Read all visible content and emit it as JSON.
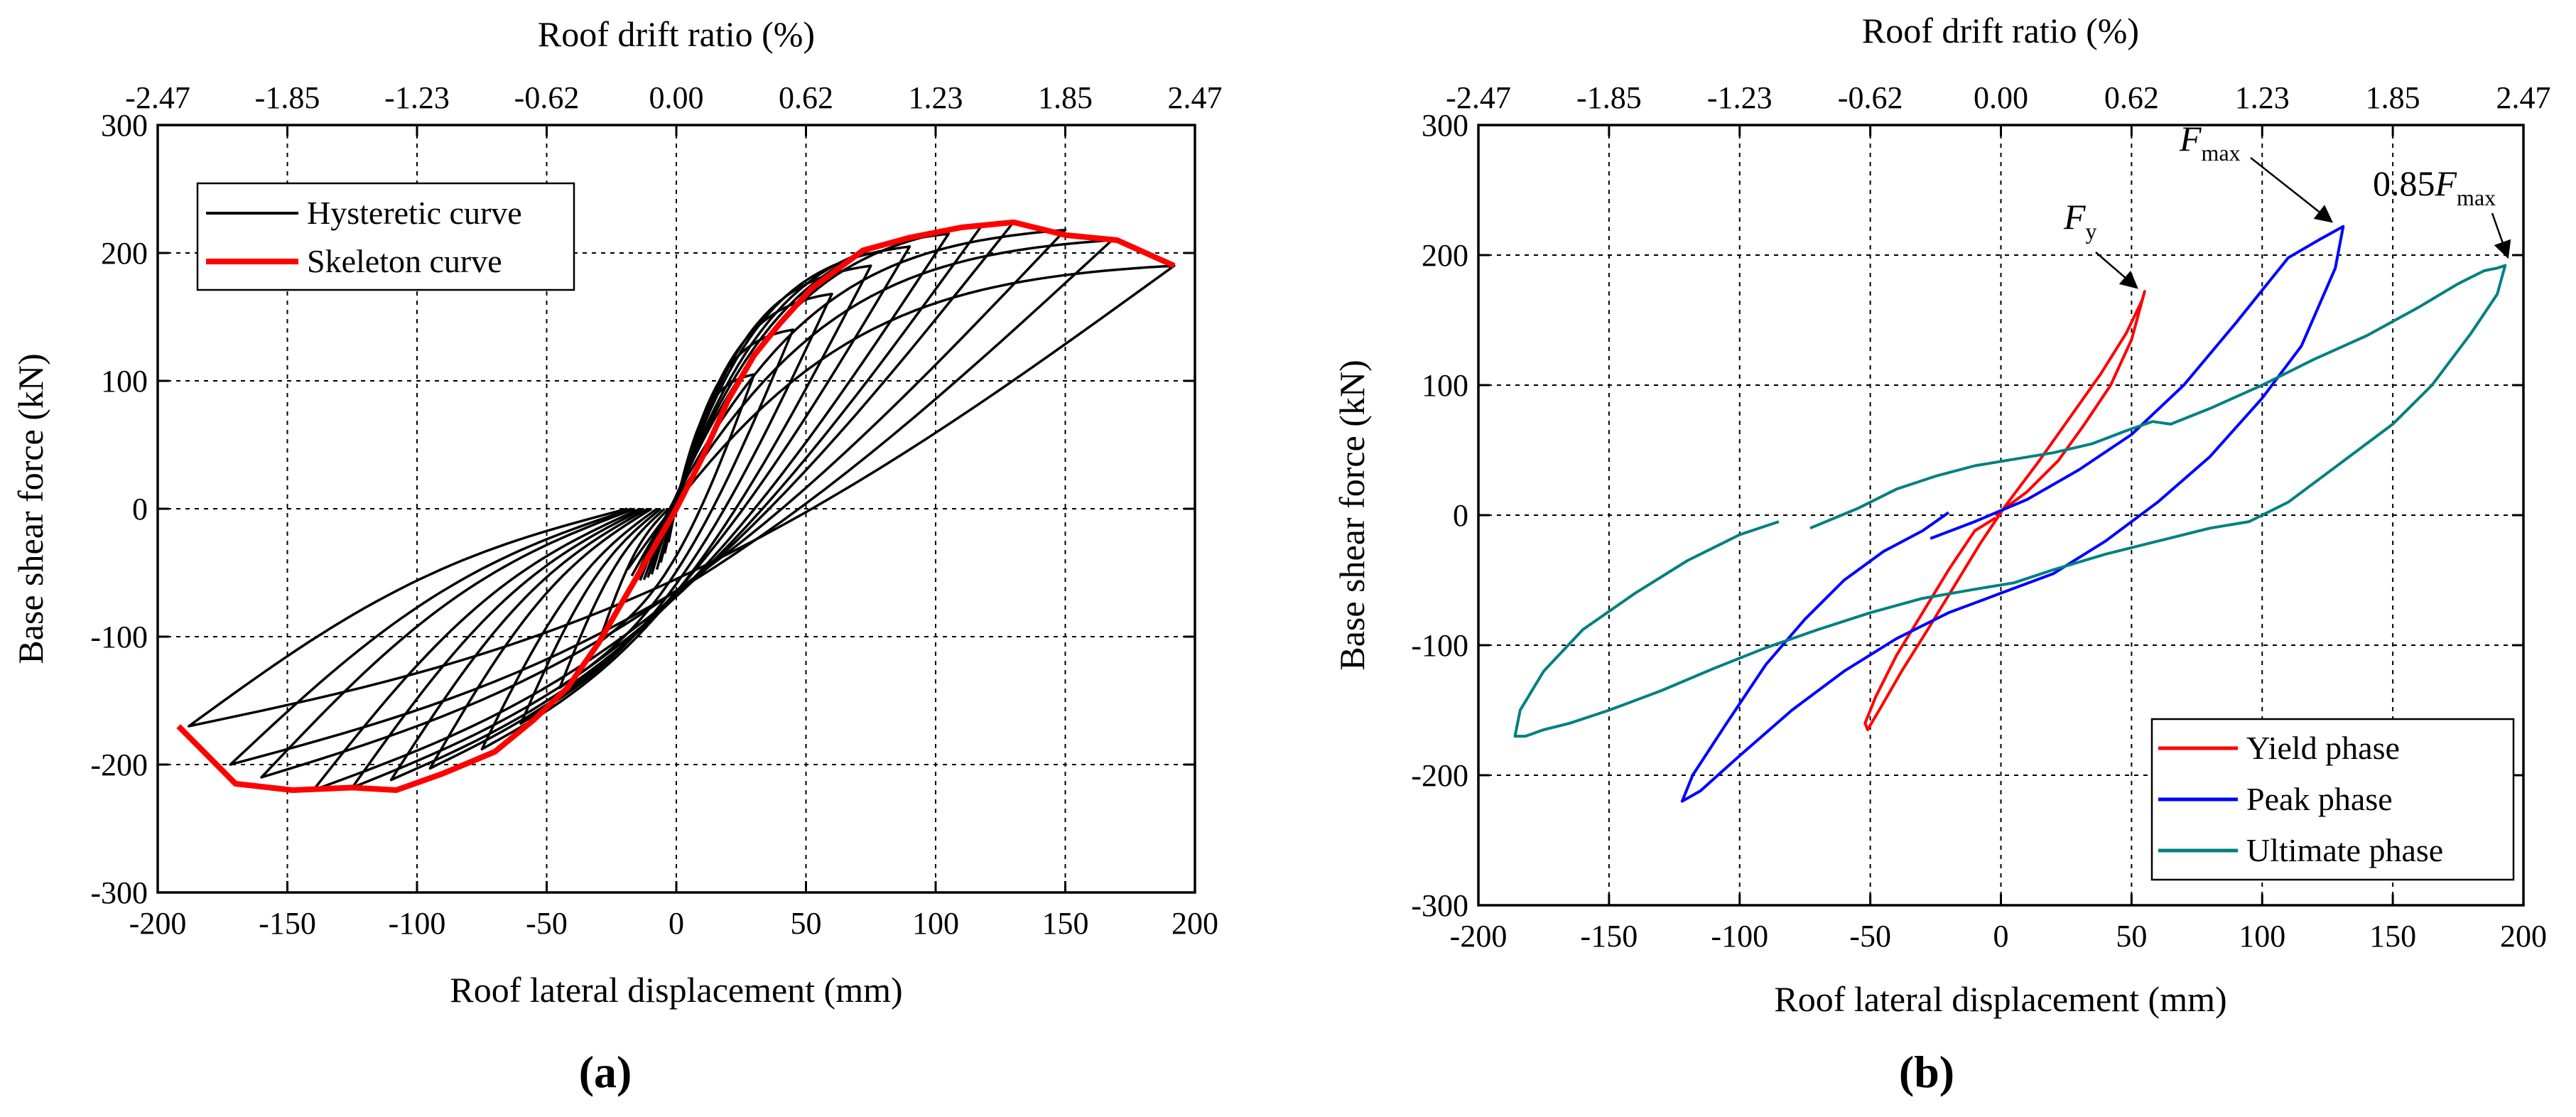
{
  "chart_data": [
    {
      "id": "a",
      "type": "line",
      "panel_label": "(a)",
      "title": "",
      "xlabel": "Roof lateral displacement (mm)",
      "ylabel": "Base shear force (kN)",
      "x2label": "Roof drift ratio (%)",
      "xlim": [
        -200,
        200
      ],
      "ylim": [
        -300,
        300
      ],
      "xticks": [
        -200,
        -150,
        -100,
        -50,
        0,
        50,
        100,
        150,
        200
      ],
      "yticks": [
        -300,
        -200,
        -100,
        0,
        100,
        200,
        300
      ],
      "x2tick_labels": [
        "-2.47",
        "-1.85",
        "-1.23",
        "-0.62",
        "0.00",
        "0.62",
        "1.23",
        "1.85",
        "2.47"
      ],
      "grid": true,
      "legend": {
        "position": "top-left",
        "entries": [
          {
            "label": "Hysteretic curve",
            "color": "#000000"
          },
          {
            "label": "Skeleton curve",
            "color": "#ff0000"
          }
        ]
      },
      "series": [
        {
          "name": "Hysteretic curve",
          "color": "#000000",
          "loops": [
            {
              "amp_pos": 30,
              "f_pos": 105,
              "amp_neg": 30,
              "f_neg": 105
            },
            {
              "amp_pos": 45,
              "f_pos": 140,
              "amp_neg": 45,
              "f_neg": 140
            },
            {
              "amp_pos": 60,
              "f_pos": 168,
              "amp_neg": 60,
              "f_neg": 168
            },
            {
              "amp_pos": 75,
              "f_pos": 190,
              "amp_neg": 75,
              "f_neg": 188
            },
            {
              "amp_pos": 90,
              "f_pos": 205,
              "amp_neg": 95,
              "f_neg": 203
            },
            {
              "amp_pos": 105,
              "f_pos": 215,
              "amp_neg": 110,
              "f_neg": 212
            },
            {
              "amp_pos": 118,
              "f_pos": 222,
              "amp_neg": 125,
              "f_neg": 218
            },
            {
              "amp_pos": 130,
              "f_pos": 224,
              "amp_neg": 140,
              "f_neg": 220
            },
            {
              "amp_pos": 150,
              "f_pos": 218,
              "amp_neg": 160,
              "f_neg": 210
            },
            {
              "amp_pos": 168,
              "f_pos": 210,
              "amp_neg": 172,
              "f_neg": 200
            },
            {
              "amp_pos": 192,
              "f_pos": 190,
              "amp_neg": 188,
              "f_neg": 170
            }
          ]
        },
        {
          "name": "Skeleton curve",
          "color": "#ff0000",
          "x": [
            -192,
            -170,
            -148,
            -125,
            -108,
            -90,
            -70,
            -55,
            -42,
            -30,
            -20,
            -10,
            0,
            10,
            20,
            30,
            40,
            52,
            72,
            90,
            110,
            130,
            150,
            170,
            192
          ],
          "y": [
            -170,
            -215,
            -220,
            -218,
            -220,
            -207,
            -190,
            -165,
            -140,
            -105,
            -70,
            -35,
            0,
            40,
            85,
            120,
            145,
            172,
            202,
            212,
            220,
            224,
            214,
            210,
            190
          ]
        }
      ]
    },
    {
      "id": "b",
      "type": "line",
      "panel_label": "(b)",
      "title": "",
      "xlabel": "Roof lateral displacement (mm)",
      "ylabel": "Base shear force (kN)",
      "x2label": "Roof drift ratio (%)",
      "xlim": [
        -200,
        200
      ],
      "ylim": [
        -300,
        300
      ],
      "xticks": [
        -200,
        -150,
        -100,
        -50,
        0,
        50,
        100,
        150,
        200
      ],
      "yticks": [
        -300,
        -200,
        -100,
        0,
        100,
        200,
        300
      ],
      "x2tick_labels": [
        "-2.47",
        "-1.85",
        "-1.23",
        "-0.62",
        "0.00",
        "0.62",
        "1.23",
        "1.85",
        "2.47"
      ],
      "grid": true,
      "legend": {
        "position": "bottom-right",
        "entries": [
          {
            "label": "Yield phase",
            "color": "#ff0000"
          },
          {
            "label": "Peak phase",
            "color": "#0000ff"
          },
          {
            "label": "Ultimate phase",
            "color": "#008080"
          }
        ]
      },
      "annotations": [
        {
          "main": "F",
          "sub": "y",
          "target": [
            55,
            172
          ]
        },
        {
          "main": "F",
          "sub": "max",
          "target": [
            131,
            222
          ]
        },
        {
          "prefix": "0.85",
          "main": "F",
          "sub": "max",
          "target": [
            192,
            192
          ]
        }
      ],
      "series": [
        {
          "name": "Yield phase",
          "color": "#ff0000",
          "x": [
            -2,
            10,
            22,
            32,
            42,
            50,
            55,
            54,
            48,
            38,
            26,
            14,
            2,
            -8,
            -18,
            -28,
            -38,
            -46,
            -51,
            -52,
            -48,
            -40,
            -30,
            -20,
            -10,
            -2
          ],
          "y": [
            0,
            18,
            42,
            70,
            100,
            135,
            172,
            165,
            140,
            108,
            74,
            40,
            8,
            -22,
            -55,
            -88,
            -120,
            -148,
            -165,
            -160,
            -140,
            -108,
            -75,
            -42,
            -12,
            -2
          ]
        },
        {
          "name": "Peak phase",
          "color": "#0000ff",
          "x": [
            -27,
            -10,
            10,
            30,
            50,
            70,
            90,
            110,
            122,
            131,
            128,
            115,
            100,
            80,
            60,
            40,
            20,
            0,
            -20,
            -40,
            -60,
            -80,
            -100,
            -115,
            -122,
            -118,
            -105,
            -90,
            -75,
            -60,
            -45,
            -30,
            -20
          ],
          "y": [
            -18,
            -5,
            12,
            35,
            62,
            100,
            148,
            198,
            212,
            222,
            190,
            130,
            90,
            45,
            10,
            -20,
            -45,
            -60,
            -75,
            -95,
            -120,
            -150,
            -185,
            -212,
            -220,
            -200,
            -160,
            -115,
            -80,
            -50,
            -28,
            -12,
            2
          ]
        },
        {
          "name": "Ultimate phase",
          "color": "#008080",
          "x": [
            -73,
            -55,
            -40,
            -25,
            -10,
            5,
            20,
            35,
            48,
            58,
            65,
            80,
            100,
            120,
            140,
            160,
            175,
            185,
            190,
            193,
            190,
            180,
            165,
            150,
            130,
            110,
            95,
            80,
            60,
            40,
            20,
            5,
            -10,
            -30,
            -50,
            -70,
            -90,
            -110,
            -130,
            -150,
            -165,
            -175,
            -182,
            -186,
            -184,
            -175,
            -160,
            -140,
            -120,
            -100,
            -85
          ],
          "y": [
            -10,
            5,
            20,
            30,
            38,
            43,
            48,
            55,
            65,
            72,
            70,
            82,
            100,
            120,
            138,
            160,
            178,
            188,
            190,
            192,
            170,
            140,
            100,
            70,
            40,
            10,
            -5,
            -10,
            -20,
            -30,
            -42,
            -52,
            -57,
            -64,
            -75,
            -88,
            -102,
            -118,
            -135,
            -150,
            -160,
            -165,
            -170,
            -170,
            -150,
            -120,
            -88,
            -60,
            -35,
            -15,
            -5
          ]
        }
      ]
    }
  ]
}
